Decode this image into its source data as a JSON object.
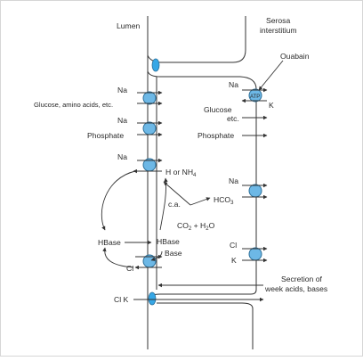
{
  "diagram": {
    "lumen_label": "Lumen",
    "serosa_label_1": "Serosa",
    "serosa_label_2": "interstitium",
    "ouabain_label": "Ouabain",
    "atp_label": "ATP",
    "apical": {
      "na_1": "Na",
      "glucose": "Glucose, amino acids, etc.",
      "na_2": "Na",
      "phosphate": "Phosphate",
      "na_3": "Na",
      "hbase_left": "HBase",
      "cl": "Cl",
      "cl_k": "Cl  K"
    },
    "basolateral": {
      "na_pump": "Na",
      "k_pump": "K",
      "glucose_1": "Glucose",
      "glucose_2": "etc.",
      "phosphate": "Phosphate",
      "na_hco3": "Na",
      "cl": "Cl",
      "k": "K"
    },
    "intracellular": {
      "h_or_nh4": "H or NH",
      "nh4_sub": "4",
      "ca": "c.a.",
      "hco3": "HCO",
      "hco3_sub": "3",
      "co2_h2o_1": "CO",
      "co2_sub": "2",
      "co2_h2o_2": " + H",
      "h2o_sub": "2",
      "co2_h2o_3": "O",
      "hbase": "HBase",
      "base": "Base"
    },
    "secretion_1": "Secretion of",
    "secretion_2": "week acids, bases"
  },
  "colors": {
    "transporter_fill": "#6db8e6",
    "transporter_stroke": "#2c6f99",
    "junction_fill": "#36a7e6",
    "line": "#333333"
  }
}
